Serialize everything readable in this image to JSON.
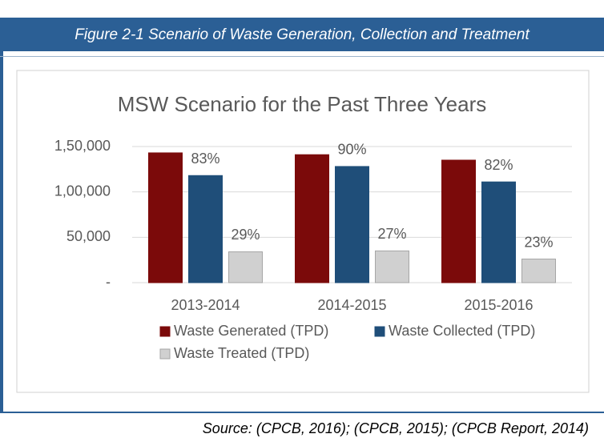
{
  "header": {
    "title": "Figure 2-1 Scenario of Waste Generation, Collection and Treatment"
  },
  "chart_data": {
    "type": "bar",
    "title": "MSW Scenario for the Past Three Years",
    "categories": [
      "2013-2014",
      "2014-2015",
      "2015-2016"
    ],
    "series": [
      {
        "name": "Waste Generated (TPD)",
        "color": "#7b0a0a",
        "values": [
          143000,
          141000,
          135000
        ]
      },
      {
        "name": "Waste Collected (TPD)",
        "color": "#1f4e79",
        "values": [
          118000,
          128000,
          111000
        ],
        "annotations": [
          "83%",
          "90%",
          "82%"
        ]
      },
      {
        "name": "Waste Treated (TPD)",
        "color": "#d0d0d0",
        "values": [
          34000,
          35000,
          26000
        ],
        "annotations": [
          "29%",
          "27%",
          "23%"
        ]
      }
    ],
    "ylim": [
      0,
      150000
    ],
    "yticks": [
      {
        "value": 0,
        "label": "-"
      },
      {
        "value": 50000,
        "label": "50,000"
      },
      {
        "value": 100000,
        "label": "1,00,000"
      },
      {
        "value": 150000,
        "label": "1,50,000"
      }
    ],
    "grid": true
  },
  "footer": {
    "source": "Source: (CPCB, 2016); (CPCB, 2015); (CPCB Report, 2014)"
  }
}
